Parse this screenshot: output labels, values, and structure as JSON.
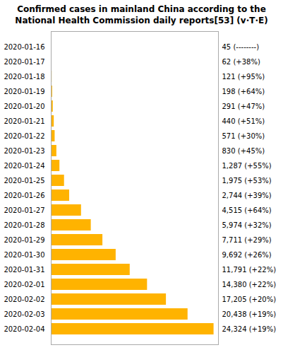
{
  "chart_data": {
    "type": "bar",
    "orientation": "horizontal",
    "title": "Confirmed cases in mainland China according to the",
    "subtitle": "National Health Commission daily reports[53] (v·T·E)",
    "categories": [
      "2020-01-16",
      "2020-01-17",
      "2020-01-18",
      "2020-01-19",
      "2020-01-20",
      "2020-01-21",
      "2020-01-22",
      "2020-01-23",
      "2020-01-24",
      "2020-01-25",
      "2020-01-26",
      "2020-01-27",
      "2020-01-28",
      "2020-01-29",
      "2020-01-30",
      "2020-01-31",
      "2020-02-01",
      "2020-02-02",
      "2020-02-03",
      "2020-02-04"
    ],
    "values": [
      45,
      62,
      121,
      198,
      291,
      440,
      571,
      830,
      1287,
      1975,
      2744,
      4515,
      5974,
      7711,
      9692,
      11791,
      14380,
      17205,
      20438,
      24324
    ],
    "value_labels": [
      "45 (--------)",
      "62 (+38%)",
      "121 (+95%)",
      "198 (+64%)",
      "291 (+47%)",
      "440 (+51%)",
      "571 (+30%)",
      "830 (+45%)",
      "1,287 (+55%)",
      "1,975 (+53%)",
      "2,744 (+39%)",
      "4,515 (+64%)",
      "5,974 (+32%)",
      "7,711 (+29%)",
      "9,692 (+26%)",
      "11,791 (+22%)",
      "14,380 (+22%)",
      "17,205 (+20%)",
      "20,438 (+19%)",
      "24,324 (+19%)"
    ],
    "color": "#FFB300",
    "xlim": [
      0,
      25000
    ],
    "data_labels": true,
    "tick_labels": "y",
    "grid": false
  }
}
